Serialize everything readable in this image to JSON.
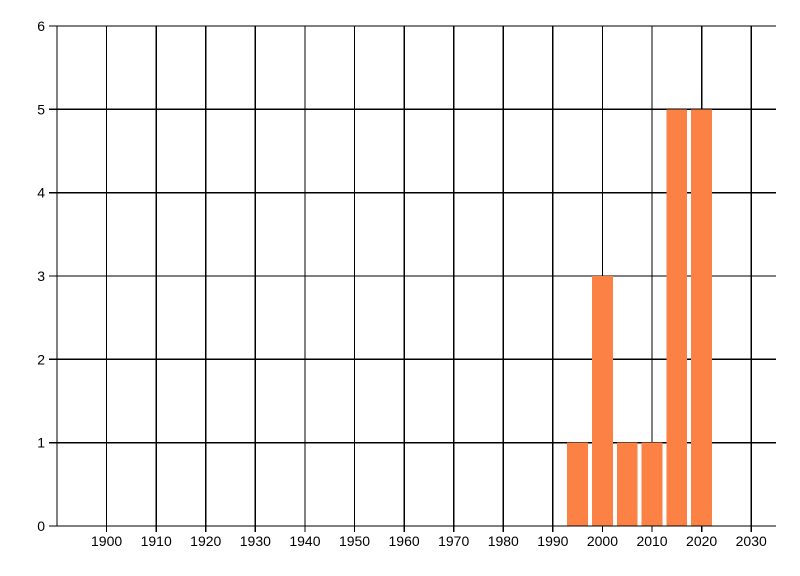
{
  "chart_data": {
    "type": "bar",
    "title": "",
    "xlabel": "",
    "ylabel": "",
    "x": [
      1995,
      2000,
      2005,
      2010,
      2015,
      2020
    ],
    "values": [
      1,
      3,
      1,
      1,
      5,
      5
    ],
    "bar_width_years": 4.2,
    "xlim": [
      1890,
      2035
    ],
    "ylim": [
      0,
      6
    ],
    "x_gridline_years": [
      1890,
      1900,
      1910,
      1920,
      1930,
      1940,
      1950,
      1960,
      1970,
      1980,
      1990,
      2000,
      2010,
      2020,
      2030
    ],
    "x_tick_years": [
      1900,
      1910,
      1920,
      1930,
      1940,
      1950,
      1960,
      1970,
      1980,
      1990,
      2000,
      2010,
      2020,
      2030
    ],
    "x_tick_labels": [
      "1900",
      "1910",
      "1920",
      "1930",
      "1940",
      "1950",
      "1960",
      "1970",
      "1980",
      "1990",
      "2000",
      "2010",
      "2020",
      "2030"
    ],
    "y_ticks": [
      0,
      1,
      2,
      3,
      4,
      5,
      6
    ],
    "y_tick_labels": [
      "0",
      "1",
      "2",
      "3",
      "4",
      "5",
      "6"
    ],
    "grid": true,
    "legend_position": "none",
    "colors": {
      "bar": "#FC8144",
      "grid": "#000000",
      "axis": "#000000",
      "text": "#000000",
      "background": "#FFFFFF"
    }
  }
}
